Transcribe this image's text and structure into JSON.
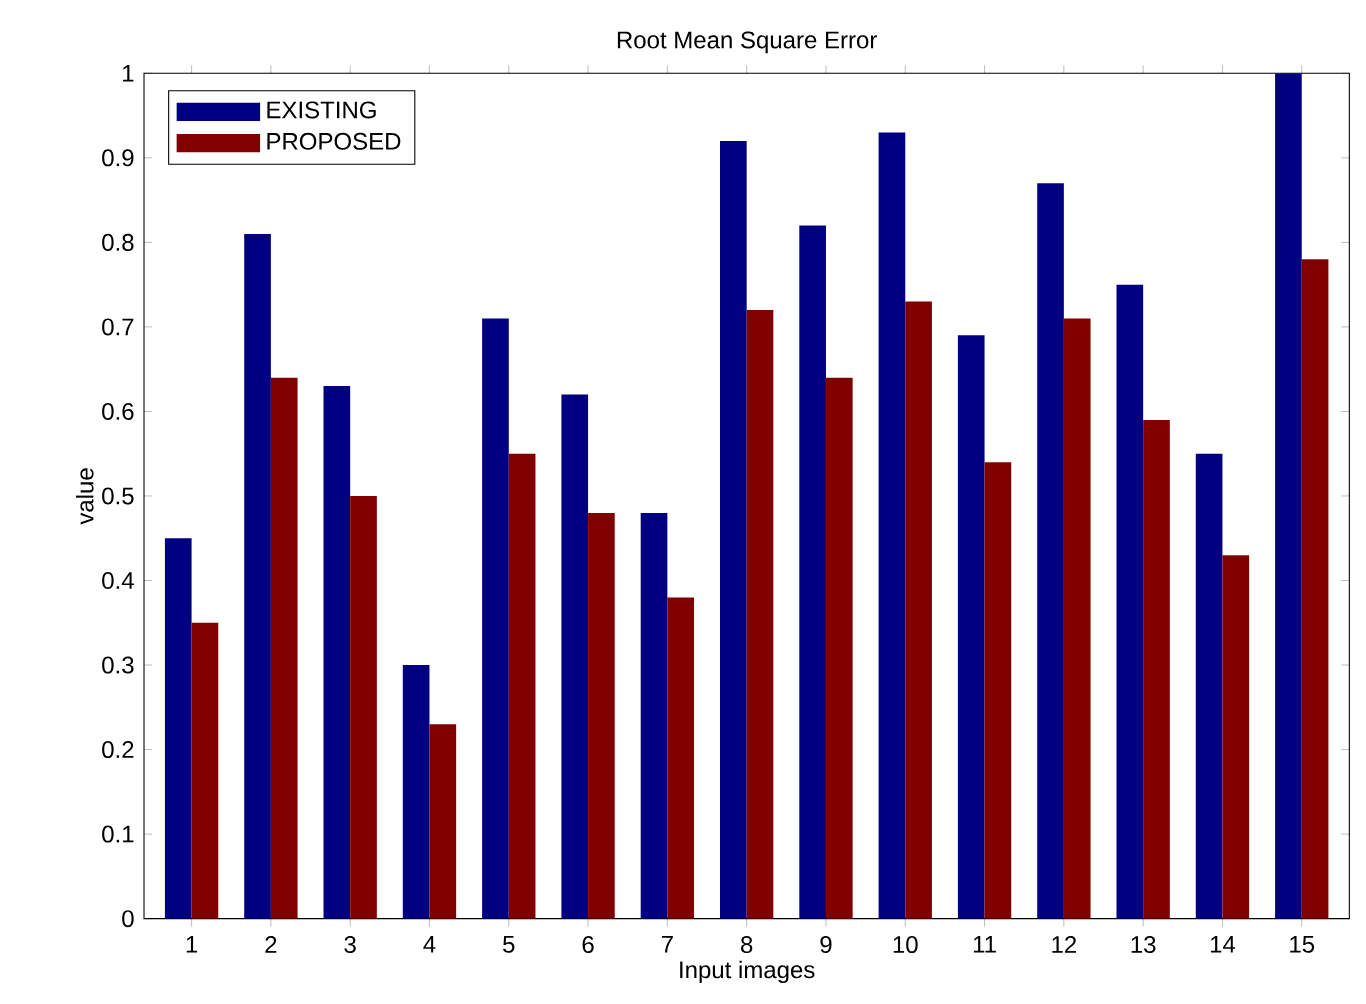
{
  "chart_data": {
    "type": "bar",
    "title": "Root Mean Square Error",
    "xlabel": "Input images",
    "ylabel": "value",
    "categories": [
      "1",
      "2",
      "3",
      "4",
      "5",
      "6",
      "7",
      "8",
      "9",
      "10",
      "11",
      "12",
      "13",
      "14",
      "15"
    ],
    "series": [
      {
        "name": "EXISTING",
        "color": "#000080",
        "values": [
          0.45,
          0.81,
          0.63,
          0.3,
          0.71,
          0.62,
          0.48,
          0.92,
          0.82,
          0.93,
          0.69,
          0.87,
          0.75,
          0.55,
          1.0
        ]
      },
      {
        "name": "PROPOSED",
        "color": "#800000",
        "values": [
          0.35,
          0.64,
          0.5,
          0.23,
          0.55,
          0.48,
          0.38,
          0.72,
          0.64,
          0.73,
          0.54,
          0.71,
          0.59,
          0.43,
          0.78
        ]
      }
    ],
    "ylim": [
      0,
      1
    ],
    "yticks": [
      0,
      0.1,
      0.2,
      0.3,
      0.4,
      0.5,
      0.6,
      0.7,
      0.8,
      0.9,
      1
    ],
    "grid": false,
    "legend": "top left"
  }
}
